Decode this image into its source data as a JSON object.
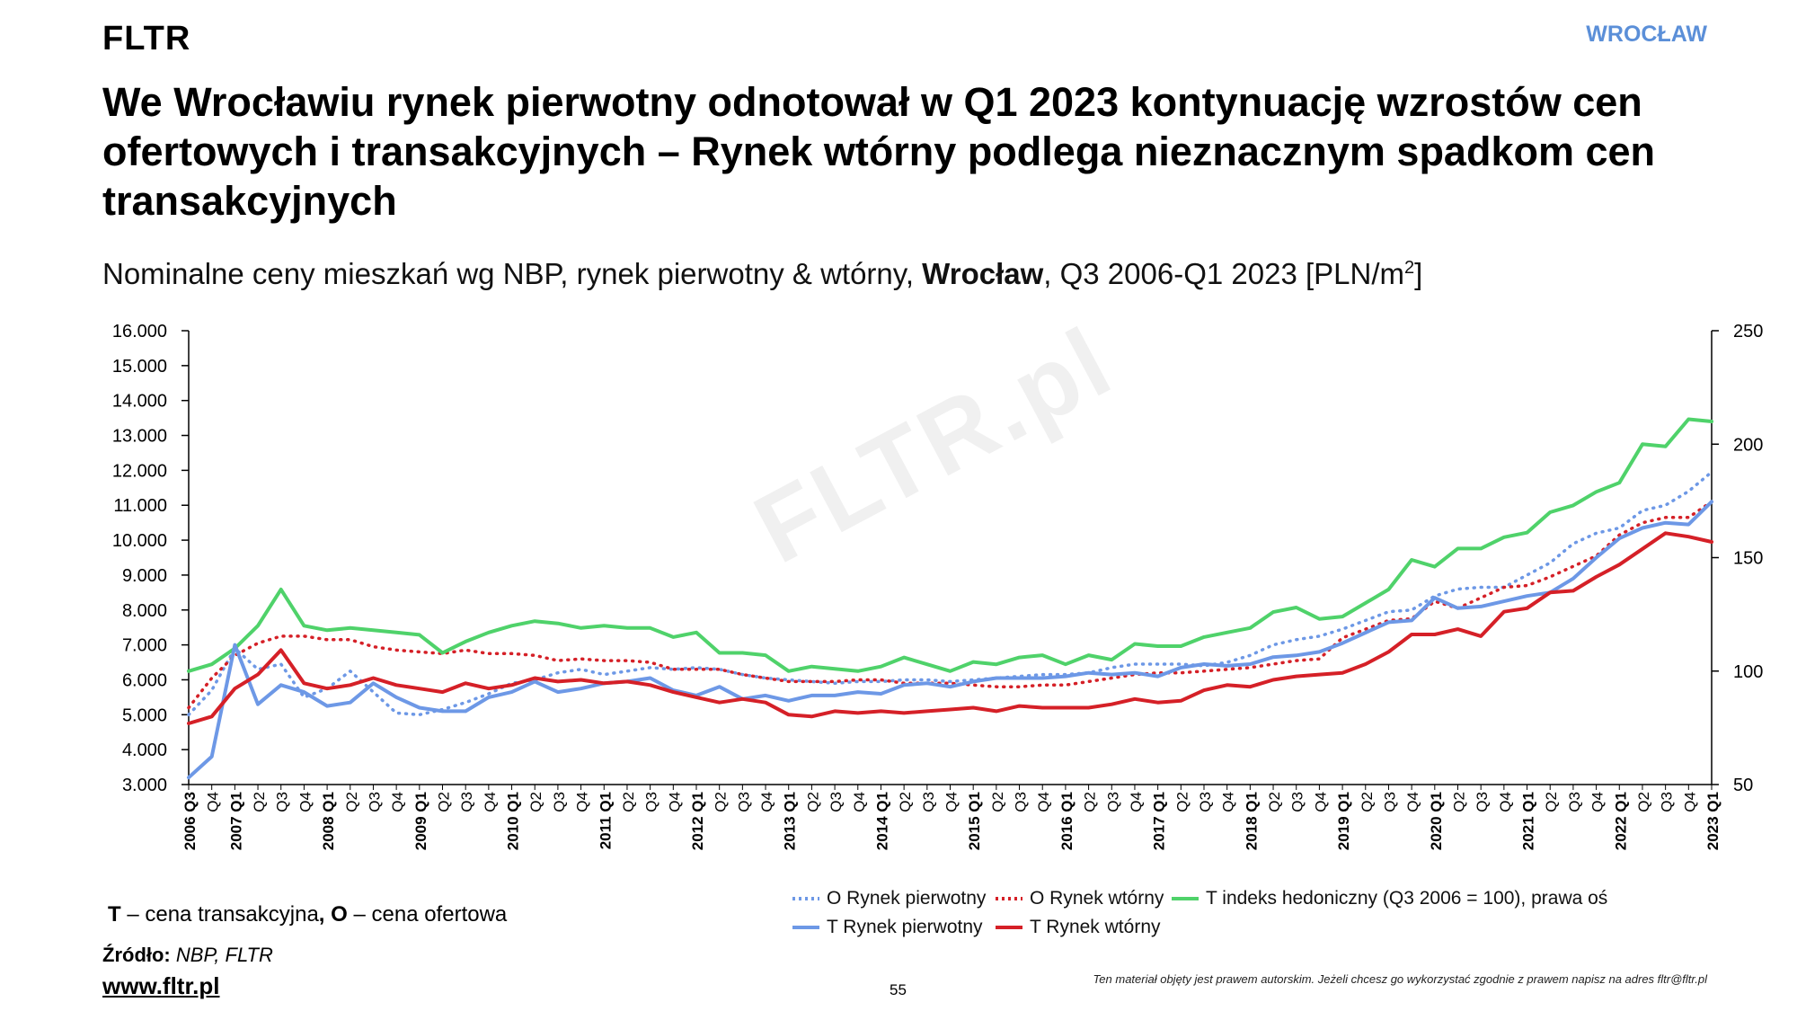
{
  "header": {
    "logo": "FLTR",
    "city": "WROCŁAW"
  },
  "title": "We Wrocławiu rynek pierwotny odnotował w Q1 2023 kontynuację wzrostów cen ofertowych i transakcyjnych – Rynek wtórny podlega nieznacznym spadkom cen transakcyjnych",
  "subtitle": {
    "prefix": "Nominalne ceny mieszkań wg NBP, rynek pierwotny & wtórny, ",
    "bold": "Wrocław",
    "suffix": ", Q3 2006-Q1 2023 [PLN/m",
    "sup": "2",
    "end": "]"
  },
  "watermark": "FLTR.pl",
  "note": {
    "t": "T",
    "t_text": " – cena transakcyjna",
    "comma": ", ",
    "o": "O",
    "o_text": " – cena ofertowa"
  },
  "footer": {
    "source_label": "Źródło:",
    "source_value": " NBP, FLTR",
    "website": "www.fltr.pl",
    "page_number": "55",
    "copyright": "Ten materiał objęty jest prawem autorskim. Jeżeli chcesz go wykorzystać zgodnie z prawem napisz na adres fltr@fltr.pl"
  },
  "colors": {
    "blue": "#6d98e6",
    "red": "#d52027",
    "green": "#4fd26a",
    "axis": "#000000",
    "accent": "#5b8fd8"
  },
  "chart_data": {
    "type": "line",
    "left_axis": {
      "ylim": [
        3000,
        16000
      ],
      "ticks": [
        "3.000",
        "4.000",
        "5.000",
        "6.000",
        "7.000",
        "8.000",
        "9.000",
        "10.000",
        "11.000",
        "12.000",
        "13.000",
        "14.000",
        "15.000",
        "16.000"
      ]
    },
    "right_axis": {
      "ylim": [
        50,
        250
      ],
      "ticks": [
        "50",
        "100",
        "150",
        "200",
        "250"
      ]
    },
    "x_labels": [
      "2006 Q3",
      "Q4",
      "2007 Q1",
      "Q2",
      "Q3",
      "Q4",
      "2008 Q1",
      "Q2",
      "Q3",
      "Q4",
      "2009 Q1",
      "Q2",
      "Q3",
      "Q4",
      "2010 Q1",
      "Q2",
      "Q3",
      "Q4",
      "2011 Q1",
      "Q2",
      "Q3",
      "Q4",
      "2012 Q1",
      "Q2",
      "Q3",
      "Q4",
      "2013 Q1",
      "Q2",
      "Q3",
      "Q4",
      "2014 Q1",
      "Q2",
      "Q3",
      "Q4",
      "2015 Q1",
      "Q2",
      "Q3",
      "Q4",
      "2016 Q1",
      "Q2",
      "Q3",
      "Q4",
      "2017 Q1",
      "Q2",
      "Q3",
      "Q4",
      "2018 Q1",
      "Q2",
      "Q3",
      "Q4",
      "2019 Q1",
      "Q2",
      "Q3",
      "Q4",
      "2020 Q1",
      "Q2",
      "Q3",
      "Q4",
      "2021 Q1",
      "Q2",
      "Q3",
      "Q4",
      "2022 Q1",
      "Q2",
      "Q3",
      "Q4",
      "2023 Q1"
    ],
    "bold_labels": [
      "2006 Q3",
      "2007 Q1",
      "2008 Q1",
      "2009 Q1",
      "2010 Q1",
      "2011 Q1",
      "2012 Q1",
      "2013 Q1",
      "2014 Q1",
      "2015 Q1",
      "2016 Q1",
      "2017 Q1",
      "2018 Q1",
      "2019 Q1",
      "2020 Q1",
      "2021 Q1",
      "2022 Q1",
      "2023 Q1"
    ],
    "series": [
      {
        "name": "O Rynek pierwotny",
        "axis": "left",
        "style": "dotted",
        "color": "#6d98e6",
        "values": [
          5000,
          5700,
          6900,
          6300,
          6450,
          5500,
          5750,
          6250,
          5650,
          5050,
          5000,
          5150,
          5350,
          5600,
          5900,
          6000,
          6200,
          6300,
          6150,
          6250,
          6350,
          6300,
          6350,
          6300,
          6150,
          6050,
          6000,
          5950,
          5900,
          5950,
          5950,
          6000,
          6000,
          5950,
          6000,
          6050,
          6100,
          6150,
          6150,
          6200,
          6350,
          6450,
          6450,
          6450,
          6400,
          6500,
          6700,
          7000,
          7150,
          7250,
          7450,
          7700,
          7950,
          8000,
          8400,
          8600,
          8650,
          8650,
          9000,
          9350,
          9900,
          10200,
          10350,
          10850,
          11000,
          11400,
          11950
        ]
      },
      {
        "name": "O Rynek wtórny",
        "axis": "left",
        "style": "dotted",
        "color": "#d52027",
        "values": [
          5200,
          6050,
          6700,
          7050,
          7250,
          7250,
          7150,
          7150,
          6950,
          6850,
          6800,
          6750,
          6850,
          6750,
          6750,
          6700,
          6550,
          6600,
          6550,
          6550,
          6500,
          6300,
          6300,
          6300,
          6150,
          6050,
          5950,
          5950,
          5950,
          6000,
          6000,
          5900,
          5900,
          5900,
          5850,
          5800,
          5800,
          5850,
          5850,
          5950,
          6050,
          6150,
          6200,
          6200,
          6250,
          6300,
          6350,
          6450,
          6550,
          6600,
          7200,
          7450,
          7700,
          7750,
          8250,
          8050,
          8350,
          8650,
          8700,
          8950,
          9250,
          9550,
          10150,
          10500,
          10650,
          10650,
          11100
        ]
      },
      {
        "name": "T indeks hedoniczny (Q3 2006 = 100), prawa oś",
        "axis": "right",
        "style": "solid",
        "color": "#4fd26a",
        "values": [
          100,
          103,
          110,
          120,
          136,
          120,
          118,
          119,
          118,
          117,
          116,
          108,
          113,
          117,
          120,
          122,
          121,
          119,
          120,
          119,
          119,
          115,
          117,
          108,
          108,
          107,
          100,
          102,
          101,
          100,
          102,
          106,
          103,
          100,
          104,
          103,
          106,
          107,
          103,
          107,
          105,
          112,
          111,
          111,
          115,
          117,
          119,
          126,
          128,
          123,
          124,
          130,
          136,
          149,
          146,
          154,
          154,
          159,
          161,
          170,
          173,
          179,
          183,
          200,
          199,
          211,
          210
        ],
        "right_values_pln_equiv": true
      },
      {
        "name": "T Rynek pierwotny",
        "axis": "left",
        "style": "solid",
        "color": "#6d98e6",
        "values": [
          3200,
          3800,
          7000,
          5300,
          5850,
          5650,
          5250,
          5350,
          5900,
          5500,
          5200,
          5100,
          5100,
          5500,
          5650,
          5950,
          5650,
          5750,
          5900,
          5950,
          6050,
          5700,
          5550,
          5800,
          5450,
          5550,
          5400,
          5550,
          5550,
          5650,
          5600,
          5850,
          5900,
          5800,
          5950,
          6050,
          6050,
          6050,
          6100,
          6200,
          6150,
          6200,
          6100,
          6350,
          6450,
          6400,
          6450,
          6650,
          6700,
          6800,
          7050,
          7350,
          7650,
          7700,
          8350,
          8050,
          8100,
          8250,
          8400,
          8500,
          8900,
          9500,
          10050,
          10350,
          10500,
          10450,
          11100
        ]
      },
      {
        "name": "T Rynek wtórny",
        "axis": "left",
        "style": "solid",
        "color": "#d52027",
        "values": [
          4750,
          4950,
          5750,
          6150,
          6850,
          5900,
          5750,
          5850,
          6050,
          5850,
          5750,
          5650,
          5900,
          5750,
          5850,
          6050,
          5950,
          6000,
          5900,
          5950,
          5850,
          5650,
          5500,
          5350,
          5450,
          5350,
          5000,
          4950,
          5100,
          5050,
          5100,
          5050,
          5100,
          5150,
          5200,
          5100,
          5250,
          5200,
          5200,
          5200,
          5300,
          5450,
          5350,
          5400,
          5700,
          5850,
          5800,
          6000,
          6100,
          6150,
          6200,
          6450,
          6800,
          7300,
          7300,
          7450,
          7250,
          7950,
          8050,
          8500,
          8550,
          8950,
          9300,
          9750,
          10200,
          10100,
          9950
        ]
      }
    ]
  },
  "legend": [
    {
      "label": "O Rynek pierwotny",
      "color": "#6d98e6",
      "style": "dotted"
    },
    {
      "label": "O Rynek wtórny",
      "color": "#d52027",
      "style": "dotted"
    },
    {
      "label": "T indeks hedoniczny (Q3 2006 = 100), prawa oś",
      "color": "#4fd26a",
      "style": "solid"
    },
    {
      "label": "T Rynek pierwotny",
      "color": "#6d98e6",
      "style": "solid"
    },
    {
      "label": "T Rynek wtórny",
      "color": "#d52027",
      "style": "solid"
    }
  ]
}
